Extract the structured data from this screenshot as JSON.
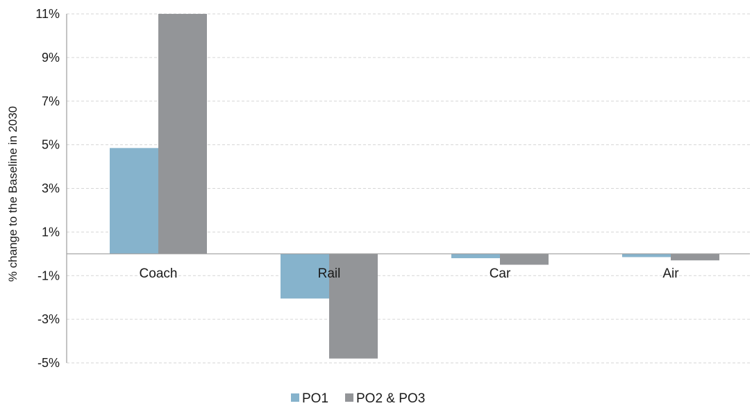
{
  "chart_data": {
    "type": "bar",
    "categories": [
      "Coach",
      "Rail",
      "Car",
      "Air"
    ],
    "series": [
      {
        "name": "PO1",
        "values": [
          4.85,
          -2.05,
          -0.2,
          -0.15
        ],
        "color": "#86b3cc"
      },
      {
        "name": "PO2 & PO3",
        "values": [
          11.0,
          -4.8,
          -0.5,
          -0.3
        ],
        "color": "#939598"
      }
    ],
    "title": "",
    "xlabel": "",
    "ylabel": "% change to the Baseline in 2030",
    "ylim": [
      -5,
      11
    ],
    "yticks": [
      11,
      9,
      7,
      5,
      3,
      1,
      -1,
      -3,
      -5
    ],
    "ytick_labels": [
      "11%",
      "9%",
      "7%",
      "5%",
      "3%",
      "1%",
      "-1%",
      "-3%",
      "-5%"
    ],
    "grid": true,
    "legend_position": "bottom"
  }
}
